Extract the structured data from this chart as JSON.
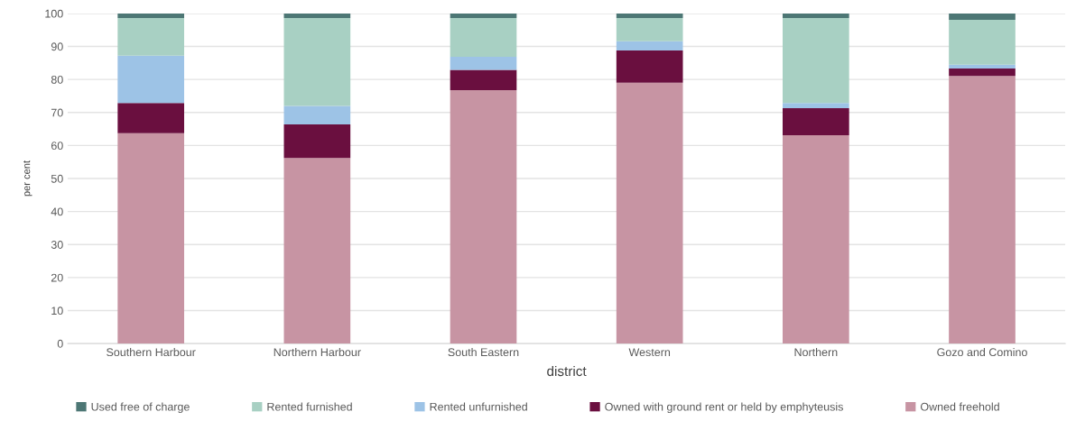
{
  "chart_data": {
    "type": "bar",
    "stacked": true,
    "xlabel": "district",
    "ylabel": "per cent",
    "categories": [
      "Southern Harbour",
      "Northern Harbour",
      "South Eastern",
      "Western",
      "Northern",
      "Gozo and Comino"
    ],
    "series": [
      {
        "name": "Owned freehold",
        "color": "#c794a3",
        "values": [
          63.7,
          56.2,
          76.8,
          79.0,
          63.1,
          81.1
        ]
      },
      {
        "name": "Owned with ground rent or held by emphyteusis",
        "color": "#6a0f3f",
        "values": [
          9.2,
          10.2,
          6.1,
          9.8,
          8.2,
          2.2
        ]
      },
      {
        "name": "Rented unfurnished",
        "color": "#9dc3e6",
        "values": [
          14.3,
          5.6,
          4.0,
          2.8,
          1.6,
          1.2
        ]
      },
      {
        "name": "Rented furnished",
        "color": "#a8d0c3",
        "values": [
          11.4,
          26.6,
          11.7,
          7.0,
          25.7,
          13.6
        ]
      },
      {
        "name": "Used free of charge",
        "color": "#4d7775",
        "values": [
          1.4,
          1.4,
          1.4,
          1.4,
          1.4,
          1.9
        ]
      }
    ],
    "ylim": [
      0,
      100
    ],
    "yticks": [
      0,
      10,
      20,
      30,
      40,
      50,
      60,
      70,
      80,
      90,
      100
    ],
    "grid": "y",
    "legend": "bottom"
  }
}
